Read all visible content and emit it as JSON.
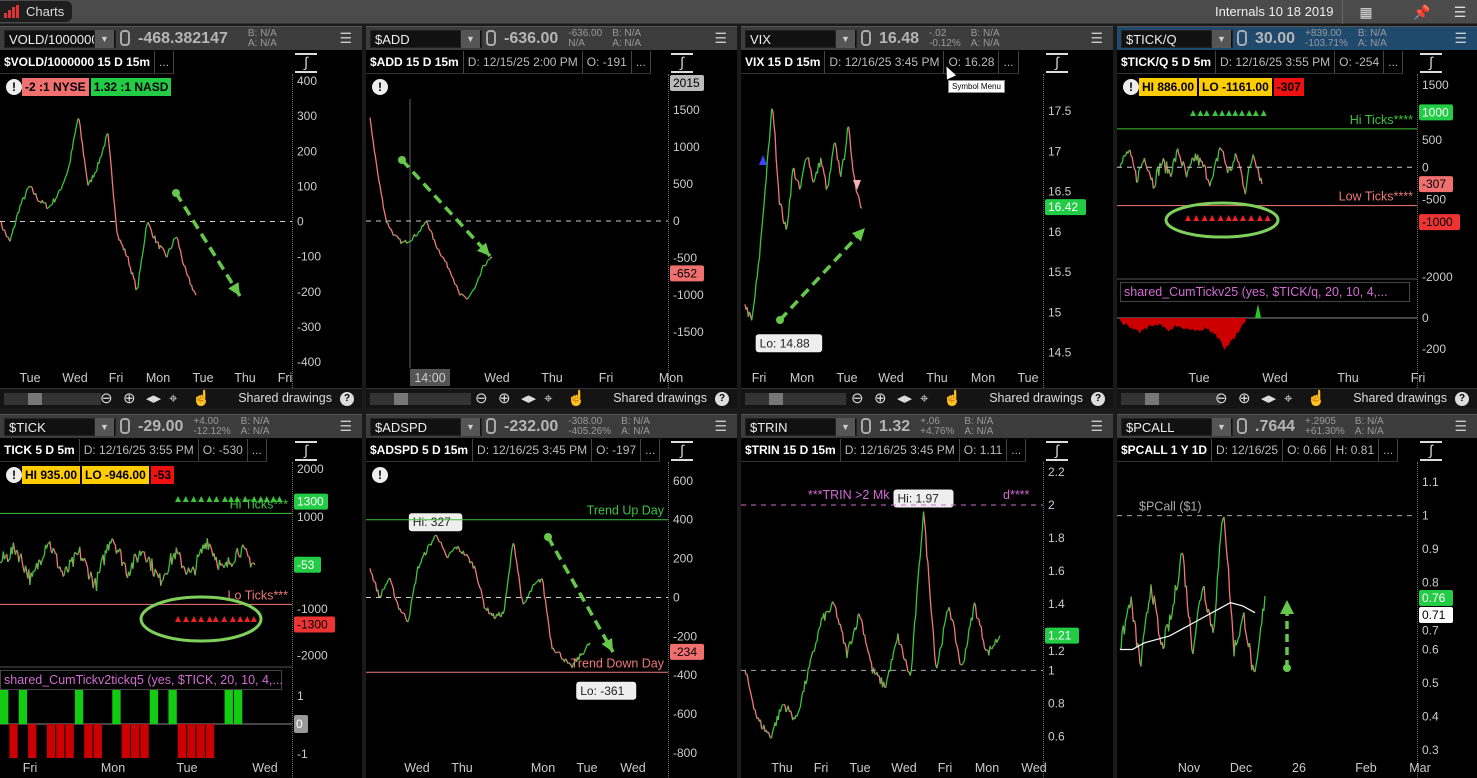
{
  "app": {
    "tab": "Charts",
    "layout_name": "Internals 10 18 2019",
    "grid_icon": "grid-icon",
    "pin_icon": "pin-icon",
    "menu_icon": "menu-icon"
  },
  "toolbar": {
    "shared_drawings": "Shared drawings",
    "help": "?"
  },
  "tooltip": "Symbol Menu",
  "colors": {
    "up": "#3cc43c",
    "down": "#f07878",
    "active_header": "#1f4a6d",
    "magenta": "#d36bd3"
  },
  "panels": [
    {
      "symbol": "VOLD/1000000",
      "last": "-468.382147",
      "chg": "",
      "chg_pct": "",
      "bid": "B: N/A",
      "ask": "A: N/A",
      "title": "$VOLD/1000000 15 D 15m",
      "fields": [
        "..."
      ],
      "badges": [
        {
          "text": "-2 :1 NYSE",
          "color": "#f07070"
        },
        {
          "text": "1.32 :1 NASD",
          "color": "#22cc44"
        }
      ],
      "y_range": [
        -417,
        420
      ],
      "y_ticks": [
        400,
        300,
        200,
        100,
        0,
        -100,
        -200,
        -300,
        -400
      ],
      "x_labels": [
        "Tue",
        "Wed",
        "Fri",
        "Mon",
        "Tue",
        "Thu",
        "Fri"
      ],
      "hlines": [
        {
          "value": 0,
          "color": "#cccccc",
          "dashed": true
        }
      ],
      "series": [
        0,
        -60,
        40,
        100,
        60,
        40,
        80,
        150,
        300,
        100,
        160,
        250,
        -40,
        -100,
        -200,
        0,
        -60,
        -100,
        -40,
        -150,
        -210
      ],
      "tags": [],
      "bubbles": []
    },
    {
      "symbol": "$ADD",
      "last": "-636.00",
      "chg": "-636.00",
      "chg_pct": "N/A",
      "bid": "B: N/A",
      "ask": "A: N/A",
      "title": "$ADD 15 D 15m",
      "fields": [
        "D: 12/15/25 2:00 PM",
        "O: -191",
        "..."
      ],
      "badges": [],
      "y_range": [
        -1990,
        1990
      ],
      "y_ticks": [
        1500,
        1000,
        500,
        0,
        -500,
        -1000,
        -1500
      ],
      "x_labels": [
        "14:00",
        "Wed",
        "Thu",
        "Fri",
        "Mon"
      ],
      "hlines": [
        {
          "value": 0,
          "color": "#cccccc",
          "dashed": true
        }
      ],
      "series": [
        1400,
        600,
        0,
        -200,
        -300,
        -250,
        -150,
        0,
        -300,
        -500,
        -700,
        -1000,
        -1050,
        -900,
        -600,
        -500
      ],
      "tags": [
        {
          "value": 2015,
          "text": "2015",
          "color": "#bbbbbb"
        },
        {
          "value": -652,
          "text": "-652",
          "color": "#f07070"
        }
      ],
      "bubbles": []
    },
    {
      "symbol": "VIX",
      "last": "16.48",
      "chg": "-.02",
      "chg_pct": "-0.12%",
      "bid": "B: N/A",
      "ask": "A: N/A",
      "title": "VIX 15 D 15m",
      "fields": [
        "D: 12/16/25 3:45 PM",
        "O: 16.28",
        "..."
      ],
      "badges": [],
      "y_range": [
        14.31,
        17.96
      ],
      "y_ticks": [
        17.5,
        17,
        16.5,
        16,
        15.5,
        15,
        14.5
      ],
      "x_labels": [
        "Fri",
        "Mon",
        "Tue",
        "Wed",
        "Thu",
        "Mon",
        "Tue"
      ],
      "hlines": [],
      "series": [
        15.1,
        14.88,
        15.6,
        16.6,
        17.6,
        16.4,
        16.0,
        16.8,
        16.5,
        17.0,
        16.6,
        16.9,
        16.5,
        17.1,
        16.7,
        17.3,
        16.6,
        16.3
      ],
      "tags": [
        {
          "value": 16.42,
          "text": "16.42",
          "color": "#22cc44"
        }
      ],
      "bubbles": [
        {
          "text": "Lo: 14.88",
          "value": 14.88,
          "below": true
        }
      ]
    },
    {
      "symbol": "$TICK/Q",
      "last": "30.00",
      "chg": "+839.00",
      "chg_pct": "-103.71%",
      "bid": "B: N/A",
      "ask": "A: N/A",
      "active": true,
      "title": "$TICK/Q 5 D 5m",
      "fields": [
        "D: 12/16/25 3:55 PM",
        "O: -254",
        "..."
      ],
      "badges": [
        {
          "text": "HI 886.00",
          "color": "#ffcc00"
        },
        {
          "text": "LO -1161.00",
          "color": "#ffcc00"
        },
        {
          "text": "-307",
          "color": "#ee1111"
        }
      ],
      "y_range": [
        -2000,
        1700
      ],
      "y_ticks": [
        1500,
        500,
        0,
        -500,
        -2000
      ],
      "x_labels": [
        "Tue",
        "Wed",
        "Thu",
        "Fri"
      ],
      "hlines": [
        {
          "value": 0,
          "color": "#cccccc",
          "dashed": true
        },
        {
          "value": 700,
          "color": "#3cc43c",
          "label": "Hi Ticks****"
        },
        {
          "value": -700,
          "color": "#f07878",
          "label": "Low Ticks****"
        }
      ],
      "series": [
        0,
        300,
        -200,
        200,
        -300,
        100,
        -100,
        300,
        -200,
        200,
        0,
        -300,
        400,
        -100,
        200,
        -400,
        300,
        -307
      ],
      "tags": [
        {
          "value": 1000,
          "text": "1000",
          "color": "#22cc44"
        },
        {
          "value": -307,
          "text": "-307",
          "color": "#f07070"
        },
        {
          "value": -1000,
          "text": "-1000",
          "color": "#ee3333"
        }
      ],
      "bubbles": [],
      "study": {
        "title": "shared_CumTickv25 (yes, $TICK/q, 20, 10, 4,...",
        "y_range": [
          -323,
          103
        ],
        "y_ticks": [
          0,
          -200
        ],
        "series": [
          -20,
          -60,
          -90,
          -60,
          -40,
          -80,
          -50,
          -70,
          -90,
          -60,
          -110,
          -200,
          -120,
          -30,
          60
        ]
      }
    },
    {
      "symbol": "$TICK",
      "last": "-29.00",
      "chg": "+4.00",
      "chg_pct": "-12.12%",
      "bid": "B: N/A",
      "ask": "A: N/A",
      "title": "TICK 5 D 5m",
      "fields": [
        "D: 12/16/25 3:55 PM",
        "O: -530",
        "..."
      ],
      "badges": [
        {
          "text": "HI 935.00",
          "color": "#ffcc00"
        },
        {
          "text": "LO -946.00",
          "color": "#ffcc00"
        },
        {
          "text": "-53",
          "color": "#ee1111"
        }
      ],
      "y_range": [
        -2200,
        2150
      ],
      "y_ticks": [
        2000,
        1000,
        -1000,
        -2000
      ],
      "x_labels": [
        "Fri",
        "Mon",
        "Tue",
        "Wed"
      ],
      "hlines": [
        {
          "value": 1050,
          "color": "#3cc43c",
          "label": "Hi Ticks***"
        },
        {
          "value": -900,
          "color": "#f07878",
          "label": "Lo Ticks***"
        }
      ],
      "series": [
        0,
        300,
        -400,
        500,
        -300,
        200,
        -500,
        600,
        -200,
        300,
        -400,
        200,
        -300,
        500,
        -200,
        300,
        -53
      ],
      "tags": [
        {
          "value": 1300,
          "text": "1300",
          "color": "#22cc44"
        },
        {
          "value": -53,
          "text": "-53",
          "color": "#22cc44"
        },
        {
          "value": -1300,
          "text": "-1300",
          "color": "#ee3333"
        }
      ],
      "bubbles": [],
      "study": {
        "title": "shared_CumTickv2tickq5 (yes, $TICK, 20, 10, 4,...",
        "y_range": [
          -1,
          1
        ],
        "y_ticks": [
          1,
          0,
          -1
        ],
        "states": [
          1,
          -1,
          1,
          -1,
          0,
          -1,
          -1,
          -1,
          1,
          -1,
          -1,
          0,
          1,
          -1,
          -1,
          -1,
          1,
          0,
          1,
          -1,
          -1,
          -1,
          -1,
          0,
          1,
          1,
          0,
          0
        ]
      }
    },
    {
      "symbol": "$ADSPD",
      "last": "-232.00",
      "chg": "-308.00",
      "chg_pct": "-405.26%",
      "bid": "B: N/A",
      "ask": "A: N/A",
      "title": "$ADSPD 5 D 15m",
      "fields": [
        "D: 12/16/25 3:45 PM",
        "O: -197",
        "..."
      ],
      "badges": [],
      "y_range": [
        -826,
        697
      ],
      "y_ticks": [
        600,
        400,
        200,
        0,
        -200,
        -400,
        -600,
        -800
      ],
      "x_labels": [
        "Wed",
        "Thu",
        "Mon",
        "Tue",
        "Wed"
      ],
      "hlines": [
        {
          "value": 0,
          "color": "#cccccc",
          "dashed": true
        },
        {
          "value": 400,
          "color": "#3cc43c",
          "label": "Trend Up Day"
        },
        {
          "value": -385,
          "color": "#f07878",
          "label": "Trend Down Day"
        }
      ],
      "series": [
        150,
        0,
        100,
        -50,
        -120,
        150,
        250,
        327,
        200,
        260,
        220,
        150,
        -50,
        -100,
        -80,
        300,
        -50,
        50,
        100,
        -250,
        -300,
        -361,
        -300,
        -234
      ],
      "tags": [
        {
          "value": -234,
          "text": "-234",
          "color": "#f07070"
        }
      ],
      "bubbles": [
        {
          "text": "Hi: 327",
          "value": 327,
          "below": false
        },
        {
          "text": "Lo: -361",
          "value": -361,
          "below": true
        }
      ]
    },
    {
      "symbol": "$TRIN",
      "last": "1.32",
      "chg": "+.06",
      "chg_pct": "+4.76%",
      "bid": "B: N/A",
      "ask": "A: N/A",
      "title": "$TRIN 15 D 15m",
      "fields": [
        "D: 12/16/25 3:45 PM",
        "O: 1.11",
        "..."
      ],
      "badges": [],
      "y_range": [
        0.47,
        2.26
      ],
      "y_ticks": [
        2.2,
        2,
        1.8,
        1.6,
        1.4,
        1.2,
        1,
        0.8,
        0.6
      ],
      "x_labels": [
        "Thu",
        "Fri",
        "Tue",
        "Wed",
        "Fri",
        "Mon",
        "Wed"
      ],
      "hlines": [
        {
          "value": 2,
          "color": "#d36bd3",
          "dashed": true,
          "label_left": "***TRIN >2 Mk",
          "label_right": "d****"
        },
        {
          "value": 1,
          "color": "#aaaaaa",
          "dashed": true
        }
      ],
      "series": [
        1.0,
        0.7,
        0.6,
        0.8,
        0.7,
        1.0,
        1.3,
        1.4,
        1.1,
        1.35,
        1.0,
        0.9,
        1.2,
        0.95,
        1.97,
        1.0,
        1.4,
        1.0,
        1.4,
        1.1,
        1.21
      ],
      "tags": [
        {
          "value": 1.21,
          "text": "1.21",
          "color": "#22cc44"
        }
      ],
      "bubbles": [
        {
          "text": "Hi: 1.97",
          "value": 1.97,
          "below": false
        }
      ]
    },
    {
      "symbol": "$PCALL",
      "last": ".7644",
      "chg": "+.2905",
      "chg_pct": "+61.30%",
      "bid": "B: N/A",
      "ask": "A: N/A",
      "title": "$PCALL 1 Y 1D",
      "fields": [
        "D: 12/16/25",
        "O: 0.66",
        "H: 0.81",
        "..."
      ],
      "badges": [],
      "y_range": [
        0.276,
        1.16
      ],
      "y_ticks": [
        1.1,
        1,
        0.9,
        0.8,
        0.7,
        0.6,
        0.5,
        0.4,
        0.3
      ],
      "x_labels": [
        "Nov",
        "Dec",
        "26",
        "Feb",
        "Mar"
      ],
      "hlines": [
        {
          "value": 1,
          "color": "#aaaaaa",
          "dashed": true,
          "label": "$PCall ($1)"
        }
      ],
      "series": [
        0.6,
        0.75,
        0.55,
        0.8,
        0.6,
        0.7,
        0.9,
        0.6,
        0.8,
        0.65,
        1.03,
        0.6,
        0.7,
        0.5,
        0.76
      ],
      "ma": [
        0.6,
        0.6,
        0.62,
        0.63,
        0.64,
        0.66,
        0.68,
        0.7,
        0.72,
        0.74,
        0.73,
        0.71
      ],
      "tags": [
        {
          "value": 0.76,
          "text": "0.76",
          "color": "#22cc44"
        },
        {
          "value": 0.71,
          "text": "0.71",
          "color": "#ffffff"
        }
      ],
      "bubbles": []
    }
  ]
}
